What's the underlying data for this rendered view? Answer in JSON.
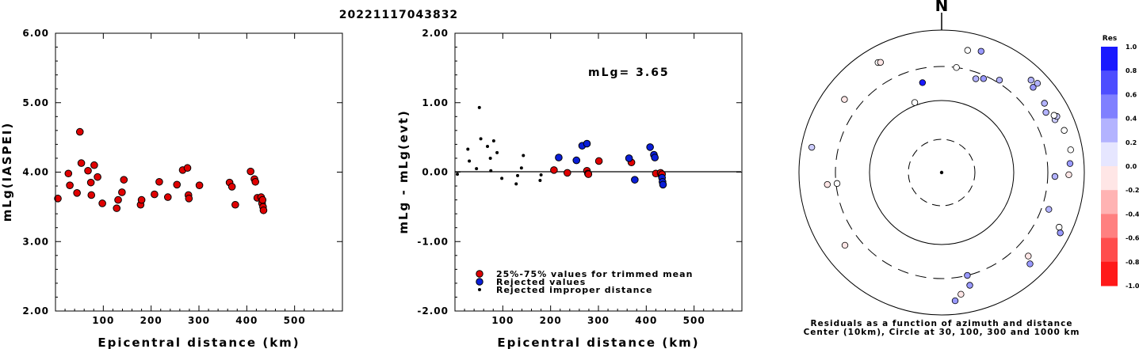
{
  "title": "20221117043832",
  "chart_data": [
    {
      "type": "scatter",
      "xlabel": "Epicentral distance (km)",
      "ylabel": "mLg(IASPEI)",
      "xlim": [
        0,
        600
      ],
      "ylim": [
        2.0,
        6.0
      ],
      "xticks": [
        "100",
        "200",
        "300",
        "400",
        "500"
      ],
      "yticks": [
        "2.00",
        "3.00",
        "4.00",
        "5.00",
        "6.00"
      ],
      "series": [
        {
          "color": "#e00000",
          "points": [
            [
              5,
              3.62
            ],
            [
              27,
              3.98
            ],
            [
              30,
              3.81
            ],
            [
              45,
              3.7
            ],
            [
              51,
              4.58
            ],
            [
              54,
              4.13
            ],
            [
              68,
              4.02
            ],
            [
              74,
              3.85
            ],
            [
              75,
              3.67
            ],
            [
              81,
              4.1
            ],
            [
              88,
              3.93
            ],
            [
              98,
              3.55
            ],
            [
              128,
              3.48
            ],
            [
              131,
              3.6
            ],
            [
              139,
              3.71
            ],
            [
              143,
              3.89
            ],
            [
              178,
              3.53
            ],
            [
              180,
              3.6
            ],
            [
              207,
              3.68
            ],
            [
              217,
              3.86
            ],
            [
              235,
              3.64
            ],
            [
              254,
              3.82
            ],
            [
              266,
              4.03
            ],
            [
              276,
              4.06
            ],
            [
              278,
              3.67
            ],
            [
              279,
              3.62
            ],
            [
              301,
              3.81
            ],
            [
              364,
              3.85
            ],
            [
              369,
              3.79
            ],
            [
              376,
              3.53
            ],
            [
              408,
              4.01
            ],
            [
              416,
              3.9
            ],
            [
              418,
              3.86
            ],
            [
              422,
              3.63
            ],
            [
              430,
              3.64
            ],
            [
              432,
              3.55
            ],
            [
              433,
              3.6
            ],
            [
              434,
              3.5
            ],
            [
              435,
              3.45
            ]
          ]
        }
      ]
    },
    {
      "type": "scatter",
      "xlabel": "Epicentral distance (km)",
      "ylabel": "mLg - mLg(evt)",
      "xlim": [
        0,
        600
      ],
      "ylim": [
        -2.0,
        2.0
      ],
      "xticks": [
        "100",
        "200",
        "300",
        "400",
        "500"
      ],
      "yticks": [
        "-2.00",
        "-1.00",
        "0.00",
        "1.00",
        "2.00"
      ],
      "annotation": "mLg= 3.65",
      "reference_line": 0.0,
      "legend": {
        "position": "bottom-left",
        "items": [
          {
            "label": "25%-75% values for trimmed mean",
            "color": "#e00000",
            "marker": "circle"
          },
          {
            "label": "Rejected values",
            "color": "#0a1ed8",
            "marker": "circle"
          },
          {
            "label": "Rejected improper distance",
            "color": "#000000",
            "marker": "dot"
          }
        ]
      },
      "series": [
        {
          "name": "25%-75% values for trimmed mean",
          "color": "#e00000",
          "points": [
            [
              207,
              0.03
            ],
            [
              235,
              -0.01
            ],
            [
              276,
              0.02
            ],
            [
              278,
              -0.02
            ],
            [
              279,
              -0.03
            ],
            [
              301,
              0.16
            ],
            [
              369,
              0.14
            ],
            [
              420,
              -0.02
            ],
            [
              430,
              -0.01
            ],
            [
              432,
              -0.05
            ],
            [
              433,
              -0.03
            ]
          ]
        },
        {
          "name": "Rejected values",
          "color": "#0a1ed8",
          "points": [
            [
              217,
              0.21
            ],
            [
              254,
              0.17
            ],
            [
              266,
              0.38
            ],
            [
              276,
              0.41
            ],
            [
              364,
              0.2
            ],
            [
              376,
              -0.11
            ],
            [
              408,
              0.36
            ],
            [
              416,
              0.25
            ],
            [
              418,
              0.21
            ],
            [
              433,
              -0.08
            ],
            [
              434,
              -0.14
            ],
            [
              435,
              -0.18
            ]
          ]
        },
        {
          "name": "Rejected improper distance",
          "color": "#000000",
          "points": [
            [
              5,
              -0.03
            ],
            [
              27,
              0.33
            ],
            [
              30,
              0.16
            ],
            [
              45,
              0.05
            ],
            [
              51,
              0.93
            ],
            [
              54,
              0.48
            ],
            [
              68,
              0.37
            ],
            [
              74,
              0.2
            ],
            [
              75,
              0.02
            ],
            [
              81,
              0.45
            ],
            [
              88,
              0.28
            ],
            [
              98,
              -0.09
            ],
            [
              128,
              -0.17
            ],
            [
              131,
              -0.05
            ],
            [
              139,
              0.06
            ],
            [
              143,
              0.24
            ],
            [
              178,
              -0.12
            ],
            [
              180,
              -0.04
            ]
          ]
        }
      ]
    },
    {
      "type": "scatter",
      "subtype": "polar",
      "north_label": "N",
      "caption": [
        "Residuals as a function of azimuth and distance",
        "Center (10km), Circle at 30, 100, 300 and 1000 km"
      ],
      "rings_km": [
        30,
        100,
        300,
        1000
      ],
      "center_km": 10,
      "colorbar": {
        "title": "Res",
        "ticks": [
          "1.0",
          "0.8",
          "0.6",
          "0.4",
          "0.2",
          "0.0",
          "-0.2",
          "-0.4",
          "-0.6",
          "-0.8",
          "-1.0"
        ],
        "max_color": "#0000ff",
        "mid_color": "#ffffff",
        "min_color": "#ff0000"
      },
      "stations": [
        {
          "az": 330,
          "dist": 600,
          "res": 0.0
        },
        {
          "az": 331,
          "dist": 580,
          "res": -0.1
        },
        {
          "az": 307,
          "dist": 500,
          "res": -0.1
        },
        {
          "az": 12,
          "dist": 560,
          "res": 0.0
        },
        {
          "az": 18,
          "dist": 610,
          "res": 0.4
        },
        {
          "az": 281,
          "dist": 710,
          "res": 0.2
        },
        {
          "az": 264,
          "dist": 400,
          "res": -0.1
        },
        {
          "az": 264,
          "dist": 290,
          "res": 0.0
        },
        {
          "az": 339,
          "dist": 110,
          "res": 0.0
        },
        {
          "az": 8,
          "dist": 300,
          "res": 0.0
        },
        {
          "az": 348,
          "dist": 190,
          "res": 0.9
        },
        {
          "az": 20,
          "dist": 245,
          "res": 0.3
        },
        {
          "az": 24,
          "dist": 270,
          "res": 0.4
        },
        {
          "az": 32,
          "dist": 330,
          "res": 0.3
        },
        {
          "az": 47,
          "dist": 560,
          "res": 0.4
        },
        {
          "az": 44,
          "dist": 630,
          "res": 0.3
        },
        {
          "az": 47,
          "dist": 680,
          "res": 0.3
        },
        {
          "az": 60,
          "dist": 480,
          "res": 0.3
        },
        {
          "az": 56,
          "dist": 540,
          "res": 0.3
        },
        {
          "az": 65,
          "dist": 560,
          "res": 0.2
        },
        {
          "az": 64,
          "dist": 620,
          "res": 0.2
        },
        {
          "az": 63,
          "dist": 580,
          "res": 0.0
        },
        {
          "az": 71,
          "dist": 650,
          "res": 0.0
        },
        {
          "az": 80,
          "dist": 680,
          "res": 0.0
        },
        {
          "az": 86,
          "dist": 630,
          "res": 0.4
        },
        {
          "az": 91,
          "dist": 600,
          "res": -0.1
        },
        {
          "az": 92,
          "dist": 380,
          "res": 0.3
        },
        {
          "az": 109,
          "dist": 380,
          "res": 0.3
        },
        {
          "az": 115,
          "dist": 650,
          "res": 0.0
        },
        {
          "az": 117,
          "dist": 730,
          "res": 0.4
        },
        {
          "az": 134,
          "dist": 480,
          "res": -0.1
        },
        {
          "az": 136,
          "dist": 600,
          "res": 0.4
        },
        {
          "az": 166,
          "dist": 300,
          "res": 0.4
        },
        {
          "az": 166,
          "dist": 420,
          "res": 0.4
        },
        {
          "az": 171,
          "dist": 530,
          "res": -0.1
        },
        {
          "az": 174,
          "dist": 640,
          "res": 0.4
        },
        {
          "az": 233,
          "dist": 490,
          "res": -0.1
        }
      ]
    }
  ]
}
